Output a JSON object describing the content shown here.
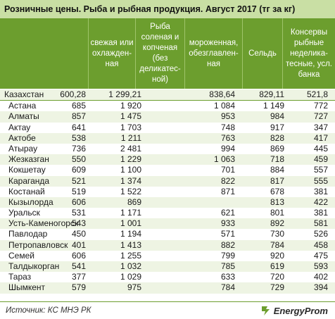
{
  "title": "Розничные цены. Рыба и рыбная продукция. Август 2017 (тг за кг)",
  "columns": [
    "",
    "свежая или\nохлажден-\nная",
    "Рыба\nсоленая и\nкопченая\n(без\nделикатес-\nной)",
    "мороженная,\nобезглавлен-\nная",
    "Сельдь",
    "Консервы\nрыбные\nнеделика-\nтесные, усл.\nбанка"
  ],
  "chart_data": {
    "type": "table",
    "title": "Розничные цены. Рыба и рыбная продукция. Август 2017 (тг за кг)",
    "rows": [
      {
        "region": "Казахстан",
        "values": [
          "600,28",
          "1 299,21",
          "838,64",
          "829,11",
          "521,8"
        ]
      },
      {
        "region": "Астана",
        "values": [
          "685",
          "1 920",
          "1 084",
          "1 149",
          "772"
        ]
      },
      {
        "region": "Алматы",
        "values": [
          "857",
          "1 475",
          "953",
          "984",
          "727"
        ]
      },
      {
        "region": "Актау",
        "values": [
          "641",
          "1 703",
          "748",
          "917",
          "347"
        ]
      },
      {
        "region": "Актобе",
        "values": [
          "538",
          "1 211",
          "763",
          "828",
          "417"
        ]
      },
      {
        "region": "Атырау",
        "values": [
          "736",
          "2 481",
          "994",
          "869",
          "445"
        ]
      },
      {
        "region": "Жезказган",
        "values": [
          "550",
          "1 229",
          "1 063",
          "718",
          "459"
        ]
      },
      {
        "region": "Кокшетау",
        "values": [
          "609",
          "1 100",
          "701",
          "884",
          "557"
        ]
      },
      {
        "region": "Караганда",
        "values": [
          "521",
          "1 374",
          "822",
          "817",
          "555"
        ]
      },
      {
        "region": "Костанай",
        "values": [
          "519",
          "1 522",
          "871",
          "678",
          "381"
        ]
      },
      {
        "region": "Кызылорда",
        "values": [
          "606",
          "869",
          "",
          "813",
          "422"
        ]
      },
      {
        "region": "Уральск",
        "values": [
          "531",
          "1 171",
          "621",
          "801",
          "381"
        ]
      },
      {
        "region": "Усть-Каменогорск",
        "values": [
          "543",
          "1 001",
          "933",
          "892",
          "581"
        ]
      },
      {
        "region": "Павлодар",
        "values": [
          "450",
          "1 194",
          "571",
          "730",
          "526"
        ]
      },
      {
        "region": "Петропавловск",
        "values": [
          "401",
          "1 413",
          "882",
          "784",
          "458"
        ]
      },
      {
        "region": "Семей",
        "values": [
          "606",
          "1 255",
          "799",
          "920",
          "475"
        ]
      },
      {
        "region": "Талдыкорган",
        "values": [
          "541",
          "1 032",
          "785",
          "619",
          "593"
        ]
      },
      {
        "region": "Тараз",
        "values": [
          "377",
          "1 029",
          "633",
          "720",
          "402"
        ]
      },
      {
        "region": "Шымкент",
        "values": [
          "579",
          "975",
          "784",
          "729",
          "394"
        ]
      }
    ]
  },
  "footer": {
    "source": "Источник: КС МНЭ РК",
    "logo_text": "EnergyProm"
  },
  "colors": {
    "title_bg": "#c9dfa4",
    "header_bg": "#6c9e2e",
    "alt_row": "#eef4e3"
  }
}
